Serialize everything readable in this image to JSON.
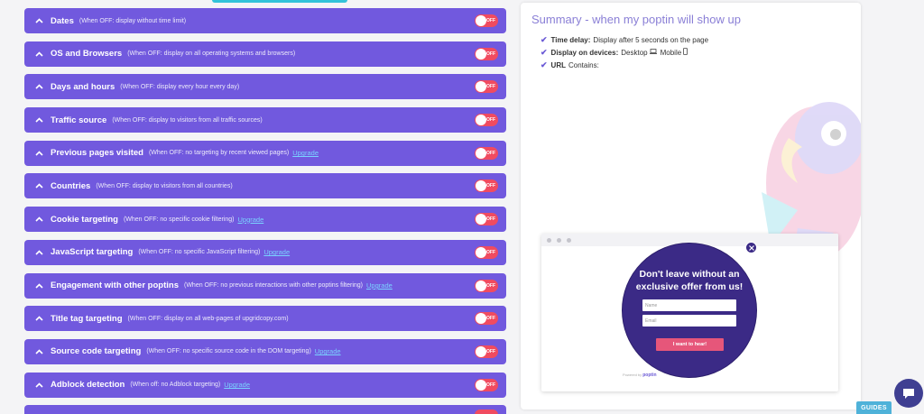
{
  "rules": [
    {
      "title": "Dates",
      "note": "(When OFF: display without time limit)",
      "upgrade": "",
      "toggle": "OFF"
    },
    {
      "title": "OS and Browsers",
      "note": "(When OFF: display on all operating systems and browsers)",
      "upgrade": "",
      "toggle": "OFF"
    },
    {
      "title": "Days and hours",
      "note": "(When OFF: display every hour every day)",
      "upgrade": "",
      "toggle": "OFF"
    },
    {
      "title": "Traffic source",
      "note": "(When OFF: display to visitors from all traffic sources)",
      "upgrade": "",
      "toggle": "OFF"
    },
    {
      "title": "Previous pages visited",
      "note": "(When OFF: no targeting by recent viewed pages)",
      "upgrade": "Upgrade",
      "toggle": "OFF"
    },
    {
      "title": "Countries",
      "note": "(When OFF: display to visitors from all countries)",
      "upgrade": "",
      "toggle": "OFF"
    },
    {
      "title": "Cookie targeting",
      "note": "(When OFF: no specific cookie filtering)",
      "upgrade": "Upgrade",
      "toggle": "OFF"
    },
    {
      "title": "JavaScript targeting",
      "note": "(When OFF: no specific JavaScript filtering)",
      "upgrade": "Upgrade",
      "toggle": "OFF"
    },
    {
      "title": "Engagement with other poptins",
      "note": "(When OFF: no previous interactions with other poptins filtering)",
      "upgrade": "Upgrade",
      "toggle": "OFF"
    },
    {
      "title": "Title tag targeting",
      "note": "(When OFF: display on all web-pages of upgridcopy.com)",
      "upgrade": "",
      "toggle": "OFF"
    },
    {
      "title": "Source code targeting",
      "note": "(When OFF: no specific source code in the DOM targeting)",
      "upgrade": "Upgrade",
      "toggle": "OFF"
    },
    {
      "title": "Adblock detection",
      "note": "(When off: no Adblock targeting)",
      "upgrade": "Upgrade",
      "toggle": "OFF"
    }
  ],
  "summary": {
    "title": "Summary - when my poptin will show up",
    "time_delay_label": "Time delay:",
    "time_delay_value": "Display after 5 seconds on the page",
    "devices_label": "Display on devices:",
    "device_desktop": "Desktop",
    "device_mobile": "Mobile",
    "url_label": "URL",
    "url_value": "Contains:"
  },
  "preview": {
    "headline_line1": "Don't leave without an",
    "headline_line2": "exclusive offer from us!",
    "name_placeholder": "Name",
    "email_placeholder": "Email",
    "button_label": "I want to hear!",
    "powered_prefix": "Powered by",
    "powered_brand": "poptin"
  },
  "guides_label": "GUIDES",
  "colors": {
    "rule_bg": "#7159de",
    "toggle_off": "#f04b60",
    "accent": "#8a7fd6",
    "popup_bg": "#3b2a86",
    "popup_button": "#e6567a",
    "guides": "#4fb2d9",
    "chat": "#3f3f92"
  },
  "icons": {
    "chevron": "chevron-up-icon",
    "check": "check-icon",
    "desktop": "laptop-icon",
    "mobile": "mobile-icon",
    "close": "close-icon",
    "chat": "chat-icon"
  }
}
